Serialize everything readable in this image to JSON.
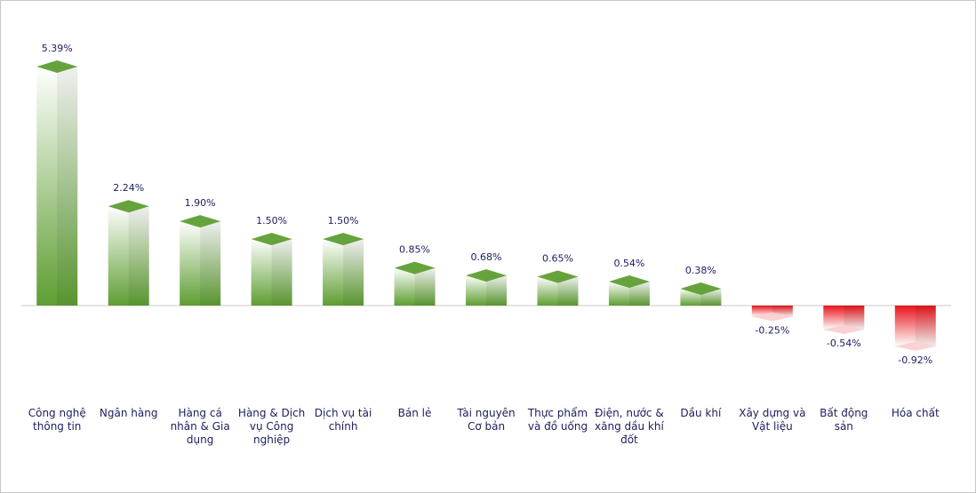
{
  "chart_data": {
    "type": "bar",
    "categories": [
      "Công nghệ thông tin",
      "Ngân hàng",
      "Hàng cá nhân & Gia dụng",
      "Hàng & Dịch vụ Công nghiệp",
      "Dịch vụ tài chính",
      "Bán lẻ",
      "Tài nguyên Cơ bản",
      "Thực phẩm và đồ uống",
      "Điện, nước & xăng dầu khí đốt",
      "Dầu khí",
      "Xây dựng và Vật liệu",
      "Bất động sản",
      "Hóa chất"
    ],
    "values": [
      5.39,
      2.24,
      1.9,
      1.5,
      1.5,
      0.85,
      0.68,
      0.65,
      0.54,
      0.38,
      -0.25,
      -0.54,
      -0.92
    ],
    "value_labels": [
      "5.39%",
      "2.24%",
      "1.90%",
      "1.50%",
      "1.50%",
      "0.85%",
      "0.68%",
      "0.65%",
      "0.54%",
      "0.38%",
      "-0.25%",
      "-0.54%",
      "-0.92%"
    ],
    "color": "#5e9e32",
    "negative_color": "#e8141a"
  }
}
